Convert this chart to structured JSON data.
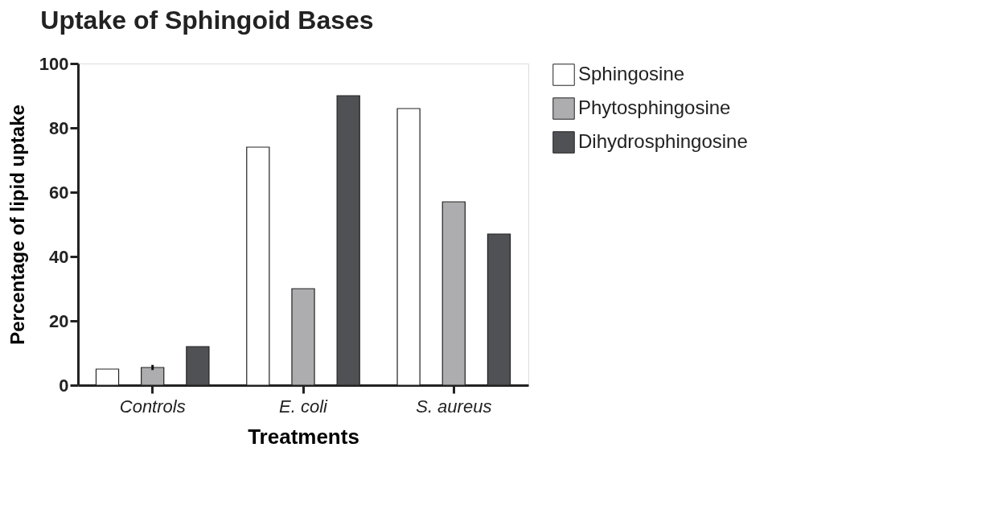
{
  "chart_data": {
    "type": "bar",
    "title": "Uptake of Sphingoid Bases",
    "xlabel": "Treatments",
    "ylabel": "Percentage of lipid uptake",
    "categories": [
      "Controls",
      "E. coli",
      "S. aureus"
    ],
    "series": [
      {
        "name": "Sphingosine",
        "color": "#ffffff",
        "values": [
          5,
          74,
          86
        ]
      },
      {
        "name": "Phytosphingosine",
        "color": "#adadb0",
        "values": [
          5.5,
          30,
          57
        ],
        "errors": [
          0.8,
          null,
          null
        ]
      },
      {
        "name": "Dihydrosphingosine",
        "color": "#505155",
        "values": [
          12,
          90,
          47
        ]
      }
    ],
    "ylim": [
      0,
      100
    ],
    "yticks": [
      0,
      20,
      40,
      60,
      80,
      100
    ],
    "grid": false,
    "legend": "right"
  }
}
